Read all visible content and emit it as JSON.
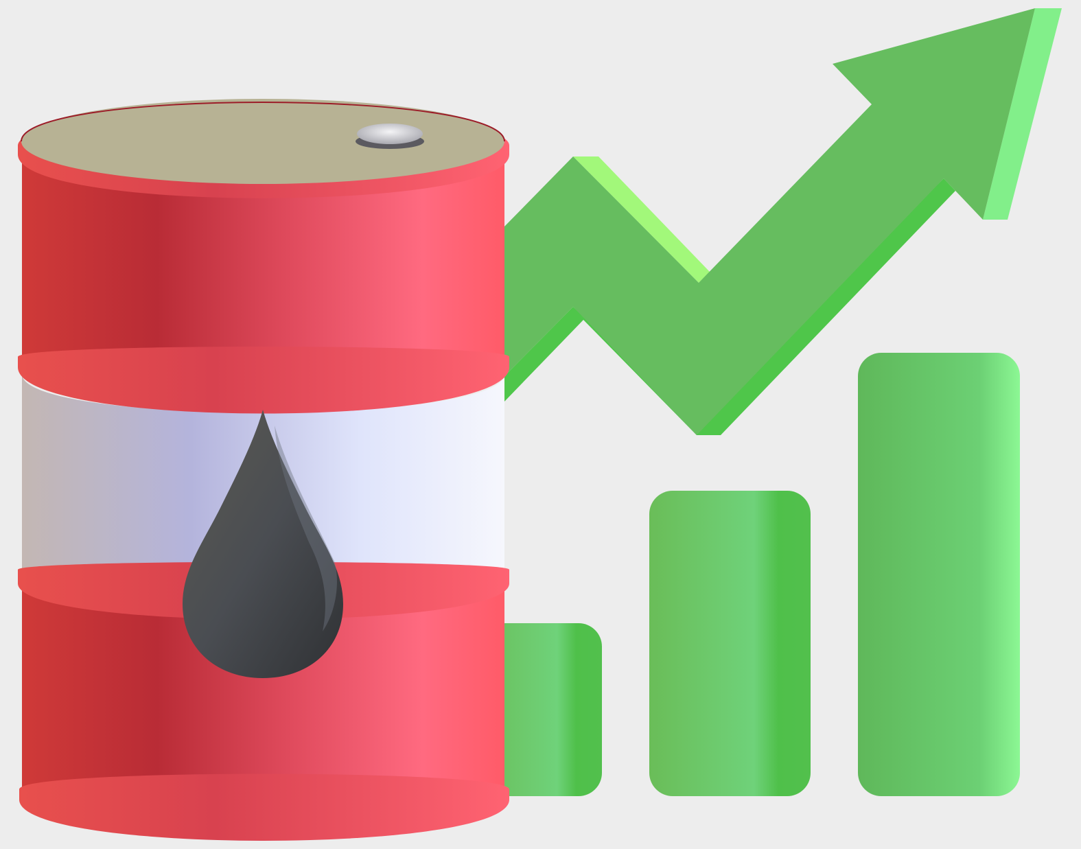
{
  "illustration": {
    "subject": "oil-barrel-with-rising-chart",
    "background_color": "#ededed",
    "icons": [
      "arrow-up-trend-icon",
      "bar-chart-icon",
      "oil-barrel-icon",
      "oil-drop-icon"
    ],
    "colors": {
      "green_dark": "#4fc34a",
      "green_mid": "#6cbf5e",
      "green_light": "#86f08a",
      "barrel_red": "#e0424f",
      "barrel_red_dark": "#b92c36",
      "barrel_red_light": "#ff6578",
      "lid": "#b6b293",
      "label_band": "#e3e6fb",
      "oil_drop": "#3e4043"
    },
    "bar_levels": [
      0.29,
      0.56,
      0.82
    ]
  }
}
